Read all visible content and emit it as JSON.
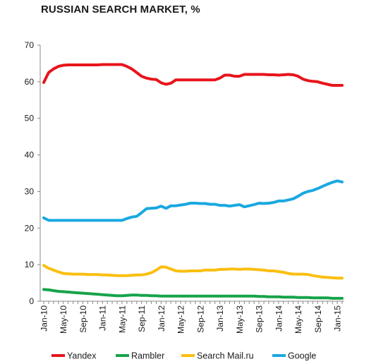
{
  "chart_data": {
    "type": "line",
    "title": "RUSSIAN SEARCH MARKET, %",
    "xlabel": "",
    "ylabel": "",
    "ylim": [
      0,
      70
    ],
    "yticks": [
      0,
      10,
      20,
      30,
      40,
      50,
      60,
      70
    ],
    "grid": false,
    "legend_position": "bottom",
    "x": [
      "Jan-10",
      "Feb-10",
      "Mar-10",
      "Apr-10",
      "May-10",
      "Jun-10",
      "Jul-10",
      "Aug-10",
      "Sep-10",
      "Oct-10",
      "Nov-10",
      "Dec-10",
      "Jan-11",
      "Feb-11",
      "Mar-11",
      "Apr-11",
      "May-11",
      "Jun-11",
      "Jul-11",
      "Aug-11",
      "Sep-11",
      "Oct-11",
      "Nov-11",
      "Dec-11",
      "Jan-12",
      "Feb-12",
      "Mar-12",
      "Apr-12",
      "May-12",
      "Jun-12",
      "Jul-12",
      "Aug-12",
      "Sep-12",
      "Oct-12",
      "Nov-12",
      "Dec-12",
      "Jan-13",
      "Feb-13",
      "Mar-13",
      "Apr-13",
      "May-13",
      "Jun-13",
      "Jul-13",
      "Aug-13",
      "Sep-13",
      "Oct-13",
      "Nov-13",
      "Dec-13",
      "Jan-14",
      "Feb-14",
      "Mar-14",
      "Apr-14",
      "May-14",
      "Jun-14",
      "Jul-14",
      "Aug-14",
      "Sep-14",
      "Oct-14",
      "Nov-14",
      "Dec-14",
      "Jan-15",
      "Feb-15"
    ],
    "x_tick_labels": [
      "Jan-10",
      "May-10",
      "Sep-10",
      "Jan-11",
      "May-11",
      "Sep-11",
      "Jan-12",
      "May-12",
      "Sep-12",
      "Jan-13",
      "May-13",
      "Sep-13",
      "Jan-14",
      "May-14",
      "Sep-14",
      "Jan-15"
    ],
    "series": [
      {
        "name": "Yandex",
        "color": "#e8141b",
        "values": [
          59.8,
          62.5,
          63.5,
          64.2,
          64.5,
          64.6,
          64.6,
          64.6,
          64.6,
          64.6,
          64.6,
          64.6,
          64.7,
          64.7,
          64.7,
          64.7,
          64.7,
          64.2,
          63.5,
          62.5,
          61.5,
          61.0,
          60.7,
          60.6,
          59.7,
          59.3,
          59.6,
          60.5,
          60.5,
          60.5,
          60.5,
          60.5,
          60.5,
          60.5,
          60.5,
          60.5,
          61.0,
          61.8,
          61.8,
          61.5,
          61.5,
          62.0,
          62.0,
          62.0,
          62.0,
          62.0,
          61.9,
          61.9,
          61.8,
          61.9,
          62.0,
          61.9,
          61.5,
          60.7,
          60.3,
          60.1,
          60.0,
          59.6,
          59.3,
          59.0,
          59.0,
          59.0
        ]
      },
      {
        "name": "Rambler",
        "color": "#16a34a",
        "values": [
          3.2,
          3.1,
          2.9,
          2.7,
          2.6,
          2.5,
          2.4,
          2.3,
          2.2,
          2.1,
          2.0,
          1.9,
          1.8,
          1.7,
          1.6,
          1.5,
          1.5,
          1.6,
          1.7,
          1.7,
          1.6,
          1.6,
          1.5,
          1.5,
          1.4,
          1.4,
          1.4,
          1.4,
          1.4,
          1.4,
          1.4,
          1.4,
          1.4,
          1.4,
          1.4,
          1.4,
          1.4,
          1.4,
          1.4,
          1.4,
          1.4,
          1.4,
          1.4,
          1.4,
          1.3,
          1.3,
          1.2,
          1.2,
          1.2,
          1.1,
          1.1,
          1.1,
          1.0,
          1.0,
          1.0,
          0.9,
          0.9,
          0.9,
          0.9,
          0.8,
          0.8,
          0.8
        ]
      },
      {
        "name": "Search Mail.ru",
        "color": "#fbbf10",
        "values": [
          9.8,
          9.0,
          8.5,
          8.0,
          7.6,
          7.5,
          7.4,
          7.4,
          7.4,
          7.3,
          7.3,
          7.3,
          7.2,
          7.2,
          7.1,
          7.0,
          7.0,
          7.0,
          7.1,
          7.2,
          7.2,
          7.4,
          7.8,
          8.5,
          9.4,
          9.3,
          8.8,
          8.3,
          8.2,
          8.2,
          8.3,
          8.3,
          8.3,
          8.5,
          8.5,
          8.5,
          8.7,
          8.7,
          8.8,
          8.8,
          8.7,
          8.8,
          8.8,
          8.7,
          8.6,
          8.5,
          8.3,
          8.3,
          8.1,
          7.9,
          7.6,
          7.4,
          7.4,
          7.4,
          7.3,
          7.0,
          6.8,
          6.6,
          6.5,
          6.4,
          6.3,
          6.3
        ]
      },
      {
        "name": "Google",
        "color": "#19a8e0",
        "values": [
          22.8,
          22.1,
          22.1,
          22.1,
          22.1,
          22.1,
          22.1,
          22.1,
          22.1,
          22.1,
          22.1,
          22.1,
          22.1,
          22.1,
          22.1,
          22.1,
          22.1,
          22.6,
          23.0,
          23.2,
          24.2,
          25.3,
          25.4,
          25.5,
          26.0,
          25.4,
          26.1,
          26.1,
          26.3,
          26.5,
          26.8,
          26.8,
          26.7,
          26.7,
          26.5,
          26.5,
          26.2,
          26.2,
          26.0,
          26.2,
          26.4,
          25.8,
          26.1,
          26.4,
          26.8,
          26.7,
          26.8,
          27.0,
          27.4,
          27.4,
          27.7,
          28.0,
          28.7,
          29.5,
          30.0,
          30.3,
          30.8,
          31.4,
          32.0,
          32.5,
          32.9,
          32.6
        ]
      }
    ]
  }
}
